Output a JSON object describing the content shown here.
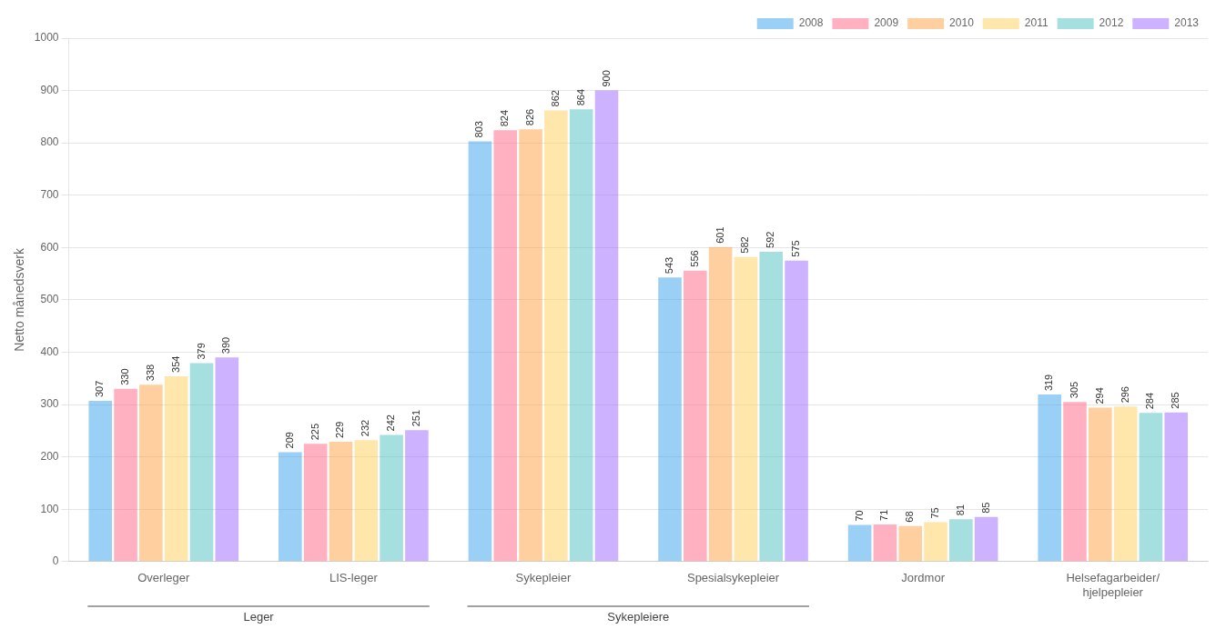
{
  "chart_data": {
    "type": "bar",
    "categories": [
      "Overleger",
      "LIS-leger",
      "Sykepleier",
      "Spesialsykepleier",
      "Jordmor",
      "Helsefagarbeider/\nhjelpepleier"
    ],
    "series": [
      {
        "name": "2008",
        "values": [
          307,
          209,
          803,
          543,
          70,
          319
        ]
      },
      {
        "name": "2009",
        "values": [
          330,
          225,
          824,
          556,
          71,
          305
        ]
      },
      {
        "name": "2010",
        "values": [
          338,
          229,
          826,
          601,
          68,
          294
        ]
      },
      {
        "name": "2011",
        "values": [
          354,
          232,
          862,
          582,
          75,
          296
        ]
      },
      {
        "name": "2012",
        "values": [
          379,
          242,
          864,
          592,
          81,
          284
        ]
      },
      {
        "name": "2013",
        "values": [
          390,
          251,
          900,
          575,
          85,
          285
        ]
      }
    ],
    "ylabel": "Netto månedsverk",
    "ylim": [
      0,
      1000
    ],
    "yticks": [
      0,
      100,
      200,
      300,
      400,
      500,
      600,
      700,
      800,
      900,
      1000
    ],
    "grid": true,
    "legend": "upper right",
    "data_labels": true,
    "annotations": [
      {
        "text": "Leger",
        "categories": [
          "Overleger",
          "LIS-leger"
        ]
      },
      {
        "text": "Sykepleiere",
        "categories": [
          "Sykepleier",
          "Spesialsykepleier"
        ]
      }
    ]
  }
}
